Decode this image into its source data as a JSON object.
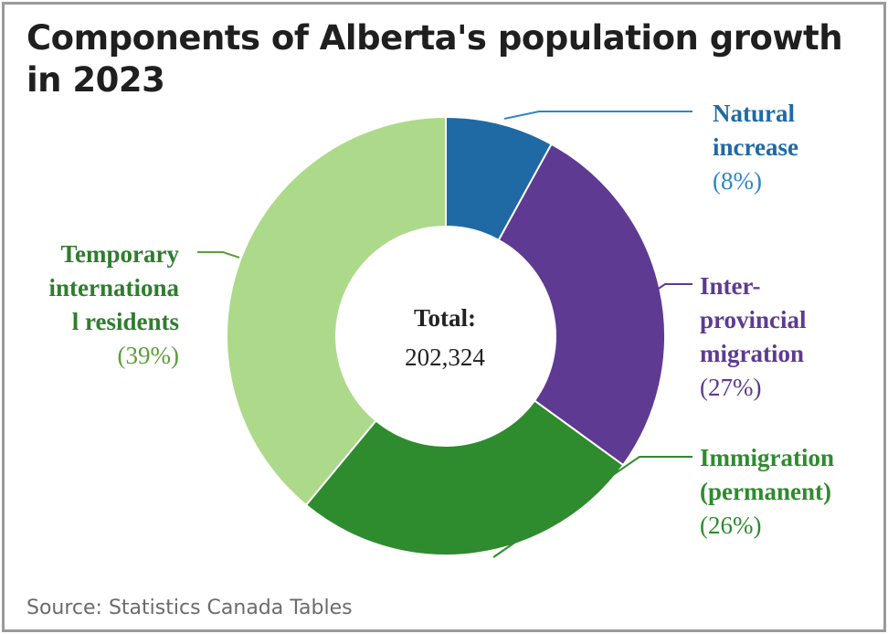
{
  "title": "Components of Alberta's population growth in 2023",
  "source": "Source: Statistics Canada Tables",
  "center": {
    "label": "Total:",
    "value": "202,324"
  },
  "chart_data": {
    "type": "pie",
    "title": "Components of Alberta's population growth in 2023",
    "total": 202324,
    "slices": [
      {
        "label_lines": [
          "Natural",
          "increase"
        ],
        "pct_label": "(8%)",
        "value": 8,
        "color": "#1f6aa5",
        "pct_color": "#2f86c8"
      },
      {
        "label_lines": [
          "Inter-",
          "provincial",
          "migration"
        ],
        "pct_label": "(27%)",
        "value": 27,
        "color": "#5e3a92",
        "pct_color": "#5e3a92"
      },
      {
        "label_lines": [
          "Immigration",
          "(permanent)"
        ],
        "pct_label": "(26%)",
        "value": 26,
        "color": "#2e8b2e",
        "pct_color": "#2e8b2e"
      },
      {
        "label_lines": [
          "Temporary",
          "internationa",
          "l residents"
        ],
        "pct_label": "(39%)",
        "value": 39,
        "color": "#add98a",
        "pct_color": "#5c9e3a",
        "name_color": "#2e7d2e"
      }
    ]
  }
}
